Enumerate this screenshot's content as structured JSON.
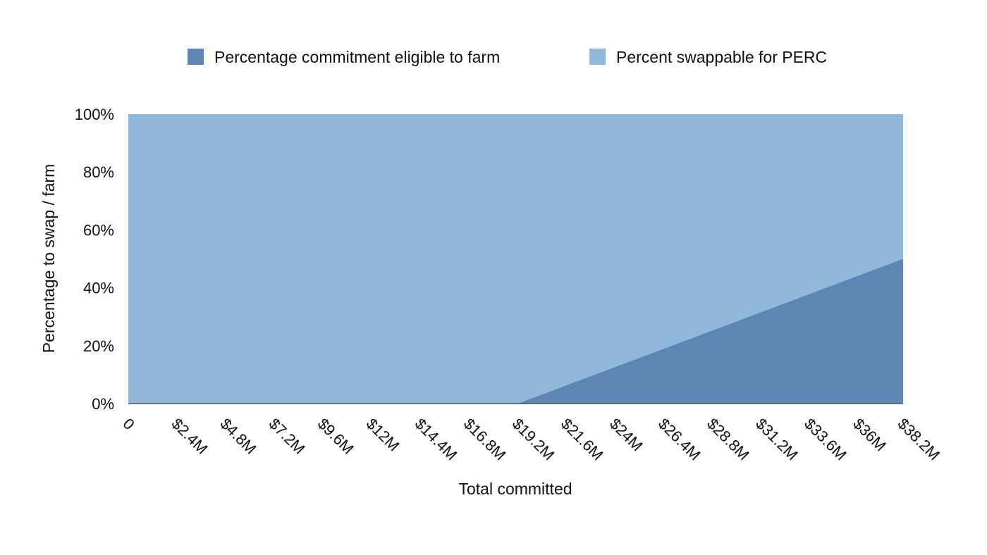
{
  "chart_data": {
    "type": "area",
    "stacked": true,
    "title": "",
    "xlabel": "Total committed",
    "ylabel": "Percentage to swap / farm",
    "x_tick_labels": [
      "0",
      "$2.4M",
      "$4.8M",
      "$7.2M",
      "$9.6M",
      "$12M",
      "$14.4M",
      "$16.8M",
      "$19.2M",
      "$21.6M",
      "$24M",
      "$26.4M",
      "$28.8M",
      "$31.2M",
      "$33.6M",
      "$36M",
      "$38.2M"
    ],
    "x_tick_values": [
      0,
      2.4,
      4.8,
      7.2,
      9.6,
      12,
      14.4,
      16.8,
      19.2,
      21.6,
      24,
      26.4,
      28.8,
      31.2,
      33.6,
      36,
      38.2
    ],
    "x_unit": "$M",
    "xlim": [
      0,
      38.2
    ],
    "y_tick_labels": [
      "0%",
      "20%",
      "40%",
      "60%",
      "80%",
      "100%"
    ],
    "y_tick_values": [
      0,
      20,
      40,
      60,
      80,
      100
    ],
    "ylim": [
      0,
      100
    ],
    "grid": false,
    "legend_position": "top",
    "x": [
      0,
      19.2,
      38.2
    ],
    "series": [
      {
        "name": "Percentage commitment eligible to farm",
        "color": "#5e85b4",
        "values": [
          0,
          0,
          50
        ]
      },
      {
        "name": "Percent swappable for PERC",
        "color": "#92b8d9",
        "values": [
          100,
          100,
          50
        ]
      }
    ]
  }
}
